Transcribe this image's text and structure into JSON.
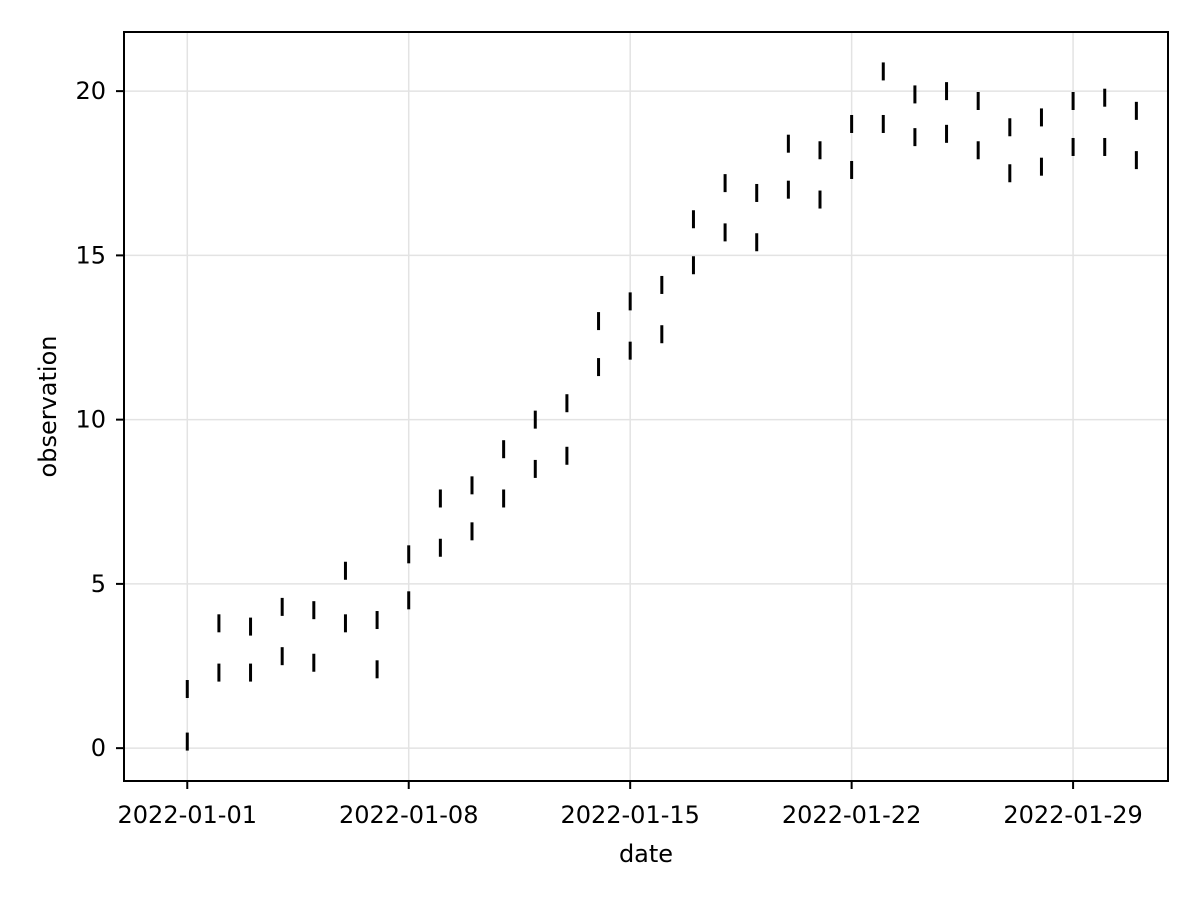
{
  "chart_data": {
    "type": "scatter",
    "marker": "vertical-line",
    "xlabel": "date",
    "ylabel": "observation",
    "x_tick_labels": [
      "2022-01-01",
      "2022-01-08",
      "2022-01-15",
      "2022-01-22",
      "2022-01-29"
    ],
    "y_tick_labels": [
      "0",
      "5",
      "10",
      "15",
      "20"
    ],
    "xlim": [
      "2021-12-30",
      "2022-02-01"
    ],
    "ylim": [
      -1,
      21.8
    ],
    "grid": true,
    "series": [
      {
        "points": [
          {
            "x": "2022-01-01",
            "y": 0.2
          },
          {
            "x": "2022-01-01",
            "y": 1.8
          },
          {
            "x": "2022-01-02",
            "y": 2.3
          },
          {
            "x": "2022-01-02",
            "y": 3.8
          },
          {
            "x": "2022-01-03",
            "y": 2.3
          },
          {
            "x": "2022-01-03",
            "y": 3.7
          },
          {
            "x": "2022-01-04",
            "y": 2.8
          },
          {
            "x": "2022-01-04",
            "y": 4.3
          },
          {
            "x": "2022-01-05",
            "y": 2.6
          },
          {
            "x": "2022-01-05",
            "y": 4.2
          },
          {
            "x": "2022-01-06",
            "y": 3.8
          },
          {
            "x": "2022-01-06",
            "y": 5.4
          },
          {
            "x": "2022-01-07",
            "y": 2.4
          },
          {
            "x": "2022-01-07",
            "y": 3.9
          },
          {
            "x": "2022-01-08",
            "y": 4.5
          },
          {
            "x": "2022-01-08",
            "y": 5.9
          },
          {
            "x": "2022-01-09",
            "y": 6.1
          },
          {
            "x": "2022-01-09",
            "y": 7.6
          },
          {
            "x": "2022-01-10",
            "y": 6.6
          },
          {
            "x": "2022-01-10",
            "y": 8.0
          },
          {
            "x": "2022-01-11",
            "y": 7.6
          },
          {
            "x": "2022-01-11",
            "y": 9.1
          },
          {
            "x": "2022-01-12",
            "y": 8.5
          },
          {
            "x": "2022-01-12",
            "y": 10.0
          },
          {
            "x": "2022-01-13",
            "y": 8.9
          },
          {
            "x": "2022-01-13",
            "y": 10.5
          },
          {
            "x": "2022-01-14",
            "y": 11.6
          },
          {
            "x": "2022-01-14",
            "y": 13.0
          },
          {
            "x": "2022-01-15",
            "y": 12.1
          },
          {
            "x": "2022-01-15",
            "y": 13.6
          },
          {
            "x": "2022-01-16",
            "y": 12.6
          },
          {
            "x": "2022-01-16",
            "y": 14.1
          },
          {
            "x": "2022-01-17",
            "y": 14.7
          },
          {
            "x": "2022-01-17",
            "y": 16.1
          },
          {
            "x": "2022-01-18",
            "y": 15.7
          },
          {
            "x": "2022-01-18",
            "y": 17.2
          },
          {
            "x": "2022-01-19",
            "y": 15.4
          },
          {
            "x": "2022-01-19",
            "y": 16.9
          },
          {
            "x": "2022-01-20",
            "y": 17.0
          },
          {
            "x": "2022-01-20",
            "y": 18.4
          },
          {
            "x": "2022-01-21",
            "y": 16.7
          },
          {
            "x": "2022-01-21",
            "y": 18.2
          },
          {
            "x": "2022-01-22",
            "y": 17.6
          },
          {
            "x": "2022-01-22",
            "y": 19.0
          },
          {
            "x": "2022-01-23",
            "y": 19.0
          },
          {
            "x": "2022-01-23",
            "y": 20.6
          },
          {
            "x": "2022-01-24",
            "y": 18.6
          },
          {
            "x": "2022-01-24",
            "y": 19.9
          },
          {
            "x": "2022-01-25",
            "y": 18.7
          },
          {
            "x": "2022-01-25",
            "y": 20.0
          },
          {
            "x": "2022-01-26",
            "y": 18.2
          },
          {
            "x": "2022-01-26",
            "y": 19.7
          },
          {
            "x": "2022-01-27",
            "y": 17.5
          },
          {
            "x": "2022-01-27",
            "y": 18.9
          },
          {
            "x": "2022-01-28",
            "y": 17.7
          },
          {
            "x": "2022-01-28",
            "y": 19.2
          },
          {
            "x": "2022-01-29",
            "y": 18.3
          },
          {
            "x": "2022-01-29",
            "y": 19.7
          },
          {
            "x": "2022-01-30",
            "y": 18.3
          },
          {
            "x": "2022-01-30",
            "y": 19.8
          },
          {
            "x": "2022-01-31",
            "y": 17.9
          },
          {
            "x": "2022-01-31",
            "y": 19.4
          }
        ]
      }
    ],
    "colors": {
      "marker": "#000000",
      "grid": "#e3e3e3",
      "frame": "#000000",
      "background": "#ffffff"
    }
  }
}
